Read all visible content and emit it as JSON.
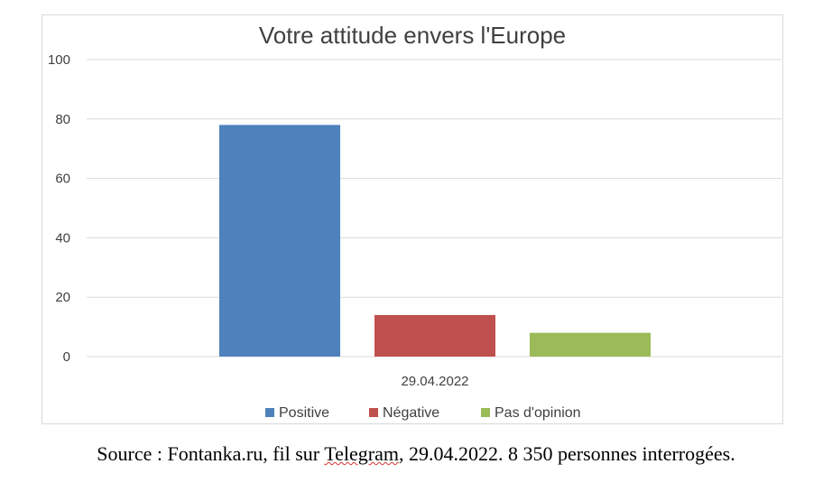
{
  "chart_data": {
    "type": "bar",
    "title": "Votre attitude envers l'Europe",
    "categories": [
      "29.04.2022"
    ],
    "series": [
      {
        "name": "Positive",
        "values": [
          78
        ],
        "color": "#4f81bd"
      },
      {
        "name": "Négative",
        "values": [
          14
        ],
        "color": "#c0504d"
      },
      {
        "name": "Pas d'opinion",
        "values": [
          8
        ],
        "color": "#9bbb59"
      }
    ],
    "xlabel": "",
    "ylabel": "",
    "ylim": [
      0,
      100
    ],
    "yticks": [
      0,
      20,
      40,
      60,
      80,
      100
    ],
    "grid": true,
    "legend_position": "bottom"
  },
  "caption": {
    "prefix": "Source : Fontanka.ru, fil sur ",
    "underlined": "Telegram",
    "suffix": ", 29.04.2022. 8 350 personnes interrogées."
  }
}
